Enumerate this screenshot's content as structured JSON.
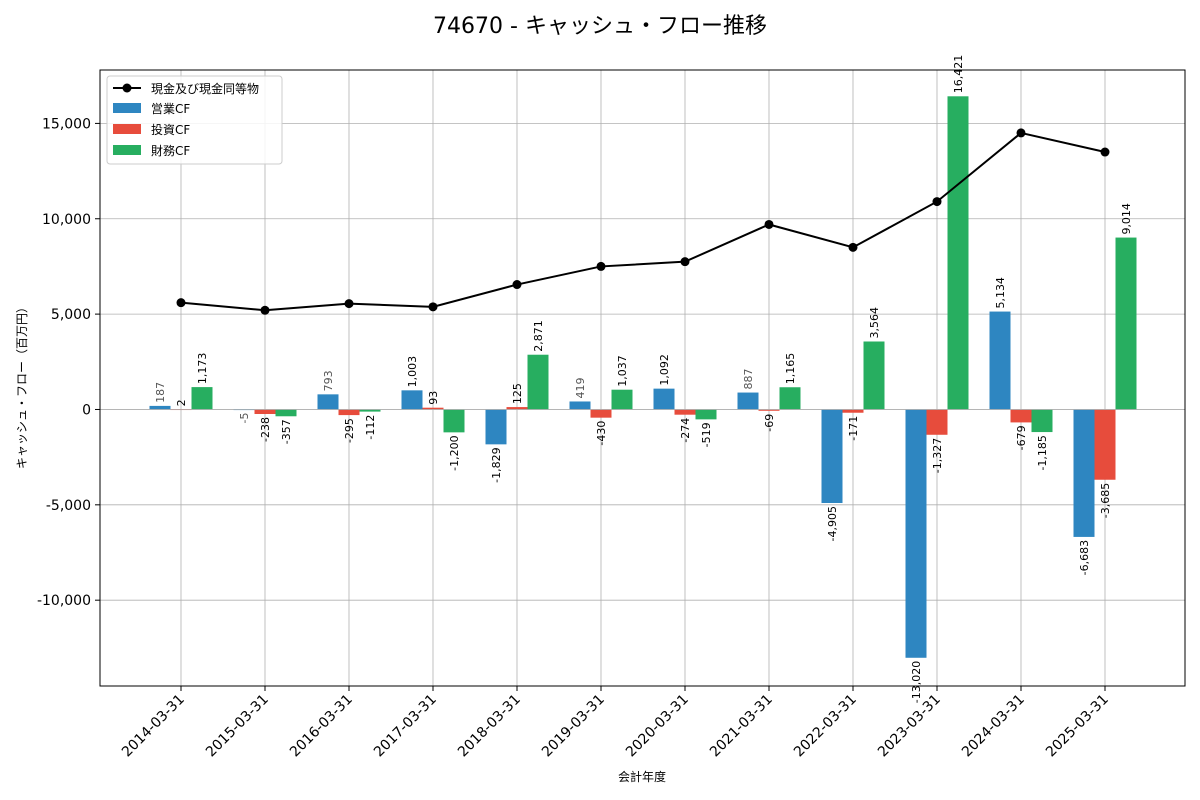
{
  "chart_data": {
    "type": "bar",
    "title": "74670 - キャッシュ・フロー推移",
    "xlabel": "会計年度",
    "ylabel": "キャッシュ・フロー（百万円）",
    "ylim": [
      -14500,
      17800
    ],
    "yticks": [
      -10000,
      -5000,
      0,
      5000,
      10000,
      15000
    ],
    "ytick_labels": [
      "-10,000",
      "-5,000",
      "0",
      "5,000",
      "10,000",
      "15,000"
    ],
    "grid": true,
    "legend_position": "top-left",
    "categories": [
      "2014-03-31",
      "2015-03-31",
      "2016-03-31",
      "2017-03-31",
      "2018-03-31",
      "2019-03-31",
      "2020-03-31",
      "2021-03-31",
      "2022-03-31",
      "2023-03-31",
      "2024-03-31",
      "2025-03-31"
    ],
    "line_series": {
      "name": "現金及び現金同等物",
      "color": "#000000",
      "values": [
        5600,
        5200,
        5550,
        5380,
        6550,
        7500,
        7750,
        9700,
        8500,
        10900,
        14500,
        13500
      ]
    },
    "series": [
      {
        "name": "営業CF",
        "color": "#2e86c1",
        "values": [
          187,
          -5,
          793,
          1003,
          -1829,
          419,
          1092,
          887,
          -4905,
          -13020,
          5134,
          -6683
        ],
        "labels": [
          "187",
          "-5",
          "793",
          "1,003",
          "-1,829",
          "419",
          "1,092",
          "887",
          "-4,905",
          "-13,020",
          "5,134",
          "-6,683"
        ]
      },
      {
        "name": "投資CF",
        "color": "#e74c3c",
        "values": [
          2,
          -238,
          -295,
          93,
          125,
          -430,
          -274,
          -69,
          -171,
          -1327,
          -679,
          -3685
        ],
        "labels": [
          "2",
          "-238",
          "-295",
          "93",
          "125",
          "-430",
          "-274",
          "-69",
          "-171",
          "-1,327",
          "-679",
          "-3,685"
        ]
      },
      {
        "name": "財務CF",
        "color": "#27ae60",
        "values": [
          1173,
          -357,
          -112,
          -1200,
          2871,
          1037,
          -519,
          1165,
          3564,
          16421,
          -1185,
          9014
        ],
        "labels": [
          "1,173",
          "-357",
          "-112",
          "-1,200",
          "2,871",
          "1,037",
          "-519",
          "1,165",
          "3,564",
          "16,421",
          "-1,185",
          "9,014"
        ]
      }
    ]
  }
}
